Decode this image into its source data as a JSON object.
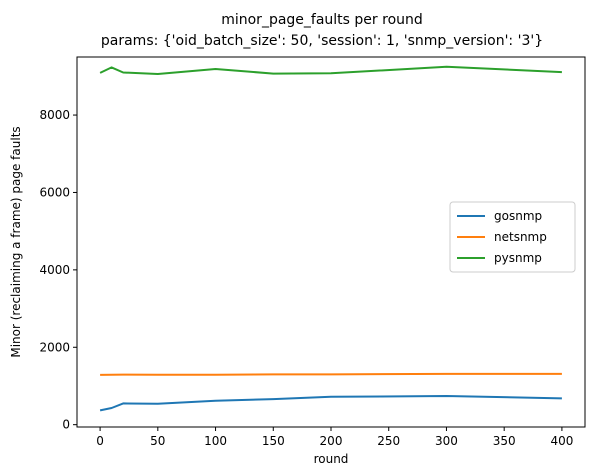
{
  "chart_data": {
    "type": "line",
    "title_line1": "minor_page_faults per round",
    "title_line2": "params: {'oid_batch_size': 50, 'session': 1, 'snmp_version': '3'}",
    "xlabel": "round",
    "ylabel": "Minor (reclaiming a frame) page faults",
    "xlim": [
      -20,
      420
    ],
    "ylim": [
      -60,
      9500
    ],
    "xticks": [
      0,
      50,
      100,
      150,
      200,
      250,
      300,
      350,
      400
    ],
    "yticks": [
      0,
      2000,
      4000,
      6000,
      8000
    ],
    "grid": false,
    "legend_position": "center-right",
    "series": [
      {
        "name": "gosnmp",
        "color": "#1f77b4",
        "x": [
          0,
          10,
          20,
          50,
          100,
          150,
          200,
          300,
          400
        ],
        "y": [
          370,
          430,
          550,
          540,
          620,
          660,
          720,
          740,
          680
        ]
      },
      {
        "name": "netsnmp",
        "color": "#ff7f0e",
        "x": [
          0,
          10,
          20,
          50,
          100,
          150,
          200,
          300,
          400
        ],
        "y": [
          1285,
          1290,
          1293,
          1290,
          1292,
          1300,
          1300,
          1312,
          1312
        ]
      },
      {
        "name": "pysnmp",
        "color": "#2ca02c",
        "x": [
          0,
          10,
          20,
          50,
          100,
          150,
          200,
          300,
          400
        ],
        "y": [
          9090,
          9230,
          9100,
          9060,
          9190,
          9070,
          9080,
          9250,
          9110
        ]
      }
    ]
  }
}
